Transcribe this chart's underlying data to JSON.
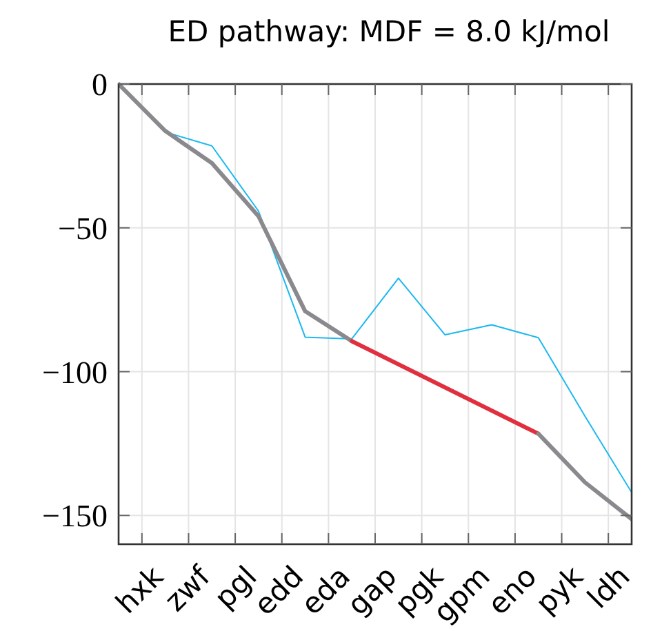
{
  "chart_data": {
    "type": "line",
    "title": "ED pathway: MDF = 8.0 kJ/mol",
    "categories": [
      null,
      "hxk",
      null,
      "zwf",
      null,
      "pgl",
      null,
      "edd",
      null,
      "eda",
      null,
      "gap",
      null,
      "pgk",
      null,
      "gpm",
      null,
      "eno",
      null,
      "pyk",
      null,
      "ldh",
      null
    ],
    "ylim": [
      -160,
      0
    ],
    "yticks": [
      {
        "value": -150,
        "label": "−150"
      },
      {
        "value": -100,
        "label": "−100"
      },
      {
        "value": -50,
        "label": "−50"
      },
      0
    ],
    "grid": true,
    "series": [
      {
        "color": "#1cb8f0",
        "values": [
          0,
          null,
          -16.7,
          null,
          -21.5,
          null,
          -44.2,
          null,
          -88,
          null,
          -88.6,
          null,
          -67.5,
          null,
          -87.2,
          null,
          -83.7,
          null,
          -88.2,
          null,
          -115.5,
          null,
          -142
        ]
      },
      {
        "color": "#8a8a8e",
        "values": [
          0,
          null,
          -16.3,
          null,
          -27.5,
          null,
          -46,
          null,
          -79,
          null,
          -89.4,
          null,
          null,
          null,
          null,
          null,
          null,
          null,
          null,
          null,
          null,
          null,
          null
        ]
      },
      {
        "color": "#e0303f",
        "values": [
          null,
          null,
          null,
          null,
          null,
          null,
          null,
          null,
          null,
          null,
          -89.4,
          null,
          null,
          null,
          null,
          null,
          null,
          null,
          -121.6,
          null,
          null,
          null,
          null
        ]
      },
      {
        "color": "#8a8a8e",
        "values": [
          null,
          null,
          null,
          null,
          null,
          null,
          null,
          null,
          null,
          null,
          null,
          null,
          null,
          null,
          null,
          null,
          null,
          null,
          -121.6,
          null,
          -138.5,
          null,
          -151.3
        ]
      }
    ]
  }
}
